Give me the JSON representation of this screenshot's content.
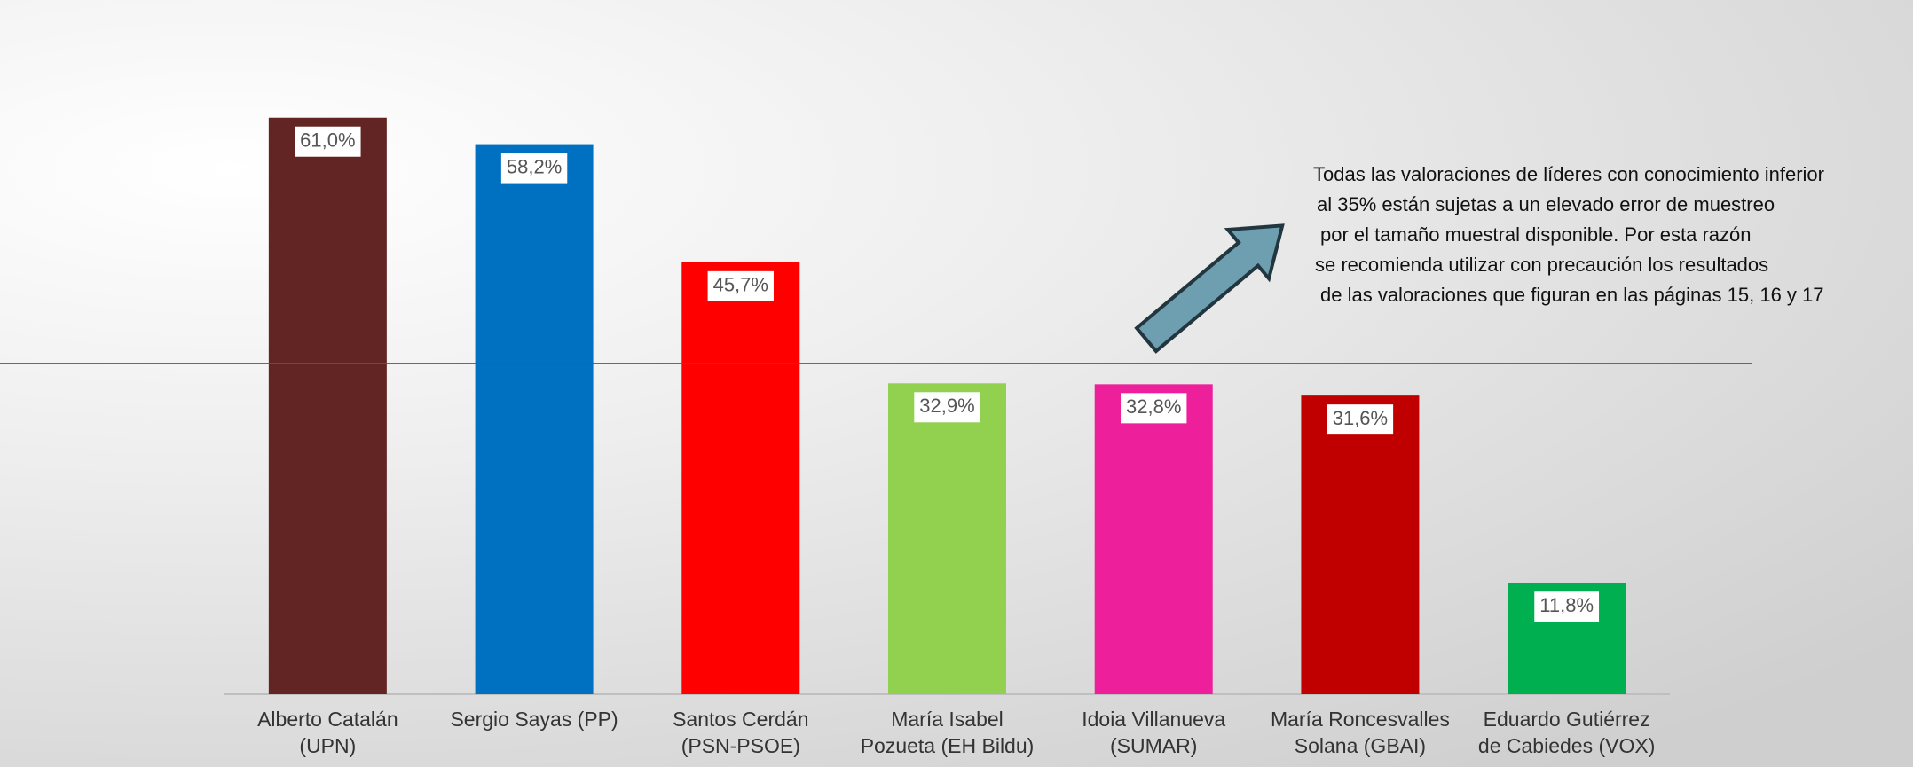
{
  "chart_data": {
    "type": "bar",
    "categories": [
      [
        "Alberto Catalán",
        "(UPN)"
      ],
      [
        "Sergio Sayas  (PP)"
      ],
      [
        "Santos Cerdán",
        "(PSN-PSOE)"
      ],
      [
        "María Isabel",
        "Pozueta  (EH Bildu)"
      ],
      [
        "Idoia Villanueva",
        "(SUMAR)"
      ],
      [
        "María Roncesvalles",
        "Solana  (GBAI)"
      ],
      [
        "Eduardo Gutiérrez",
        "de Cabiedes (VOX)"
      ]
    ],
    "values": [
      61.0,
      58.2,
      45.7,
      32.9,
      32.8,
      31.6,
      11.8
    ],
    "value_labels": [
      "61,0%",
      "58,2%",
      "45,7%",
      "32,9%",
      "32,8%",
      "31,6%",
      "11,8%"
    ],
    "colors": [
      "#632523",
      "#0070c0",
      "#ff0000",
      "#92d050",
      "#ed1f9a",
      "#c00000",
      "#00b050"
    ],
    "ylim": [
      0,
      70
    ],
    "reference_value": 35,
    "annotation": [
      "Todas las valoraciones de líderes con conocimiento inferior",
      "al 35% están sujetas a un elevado error de muestreo",
      "por el tamaño muestral disponible. Por esta razón",
      "se recomienda utilizar con precaución los resultados",
      "de las valoraciones que figuran en las páginas 15, 16 y 17"
    ]
  }
}
